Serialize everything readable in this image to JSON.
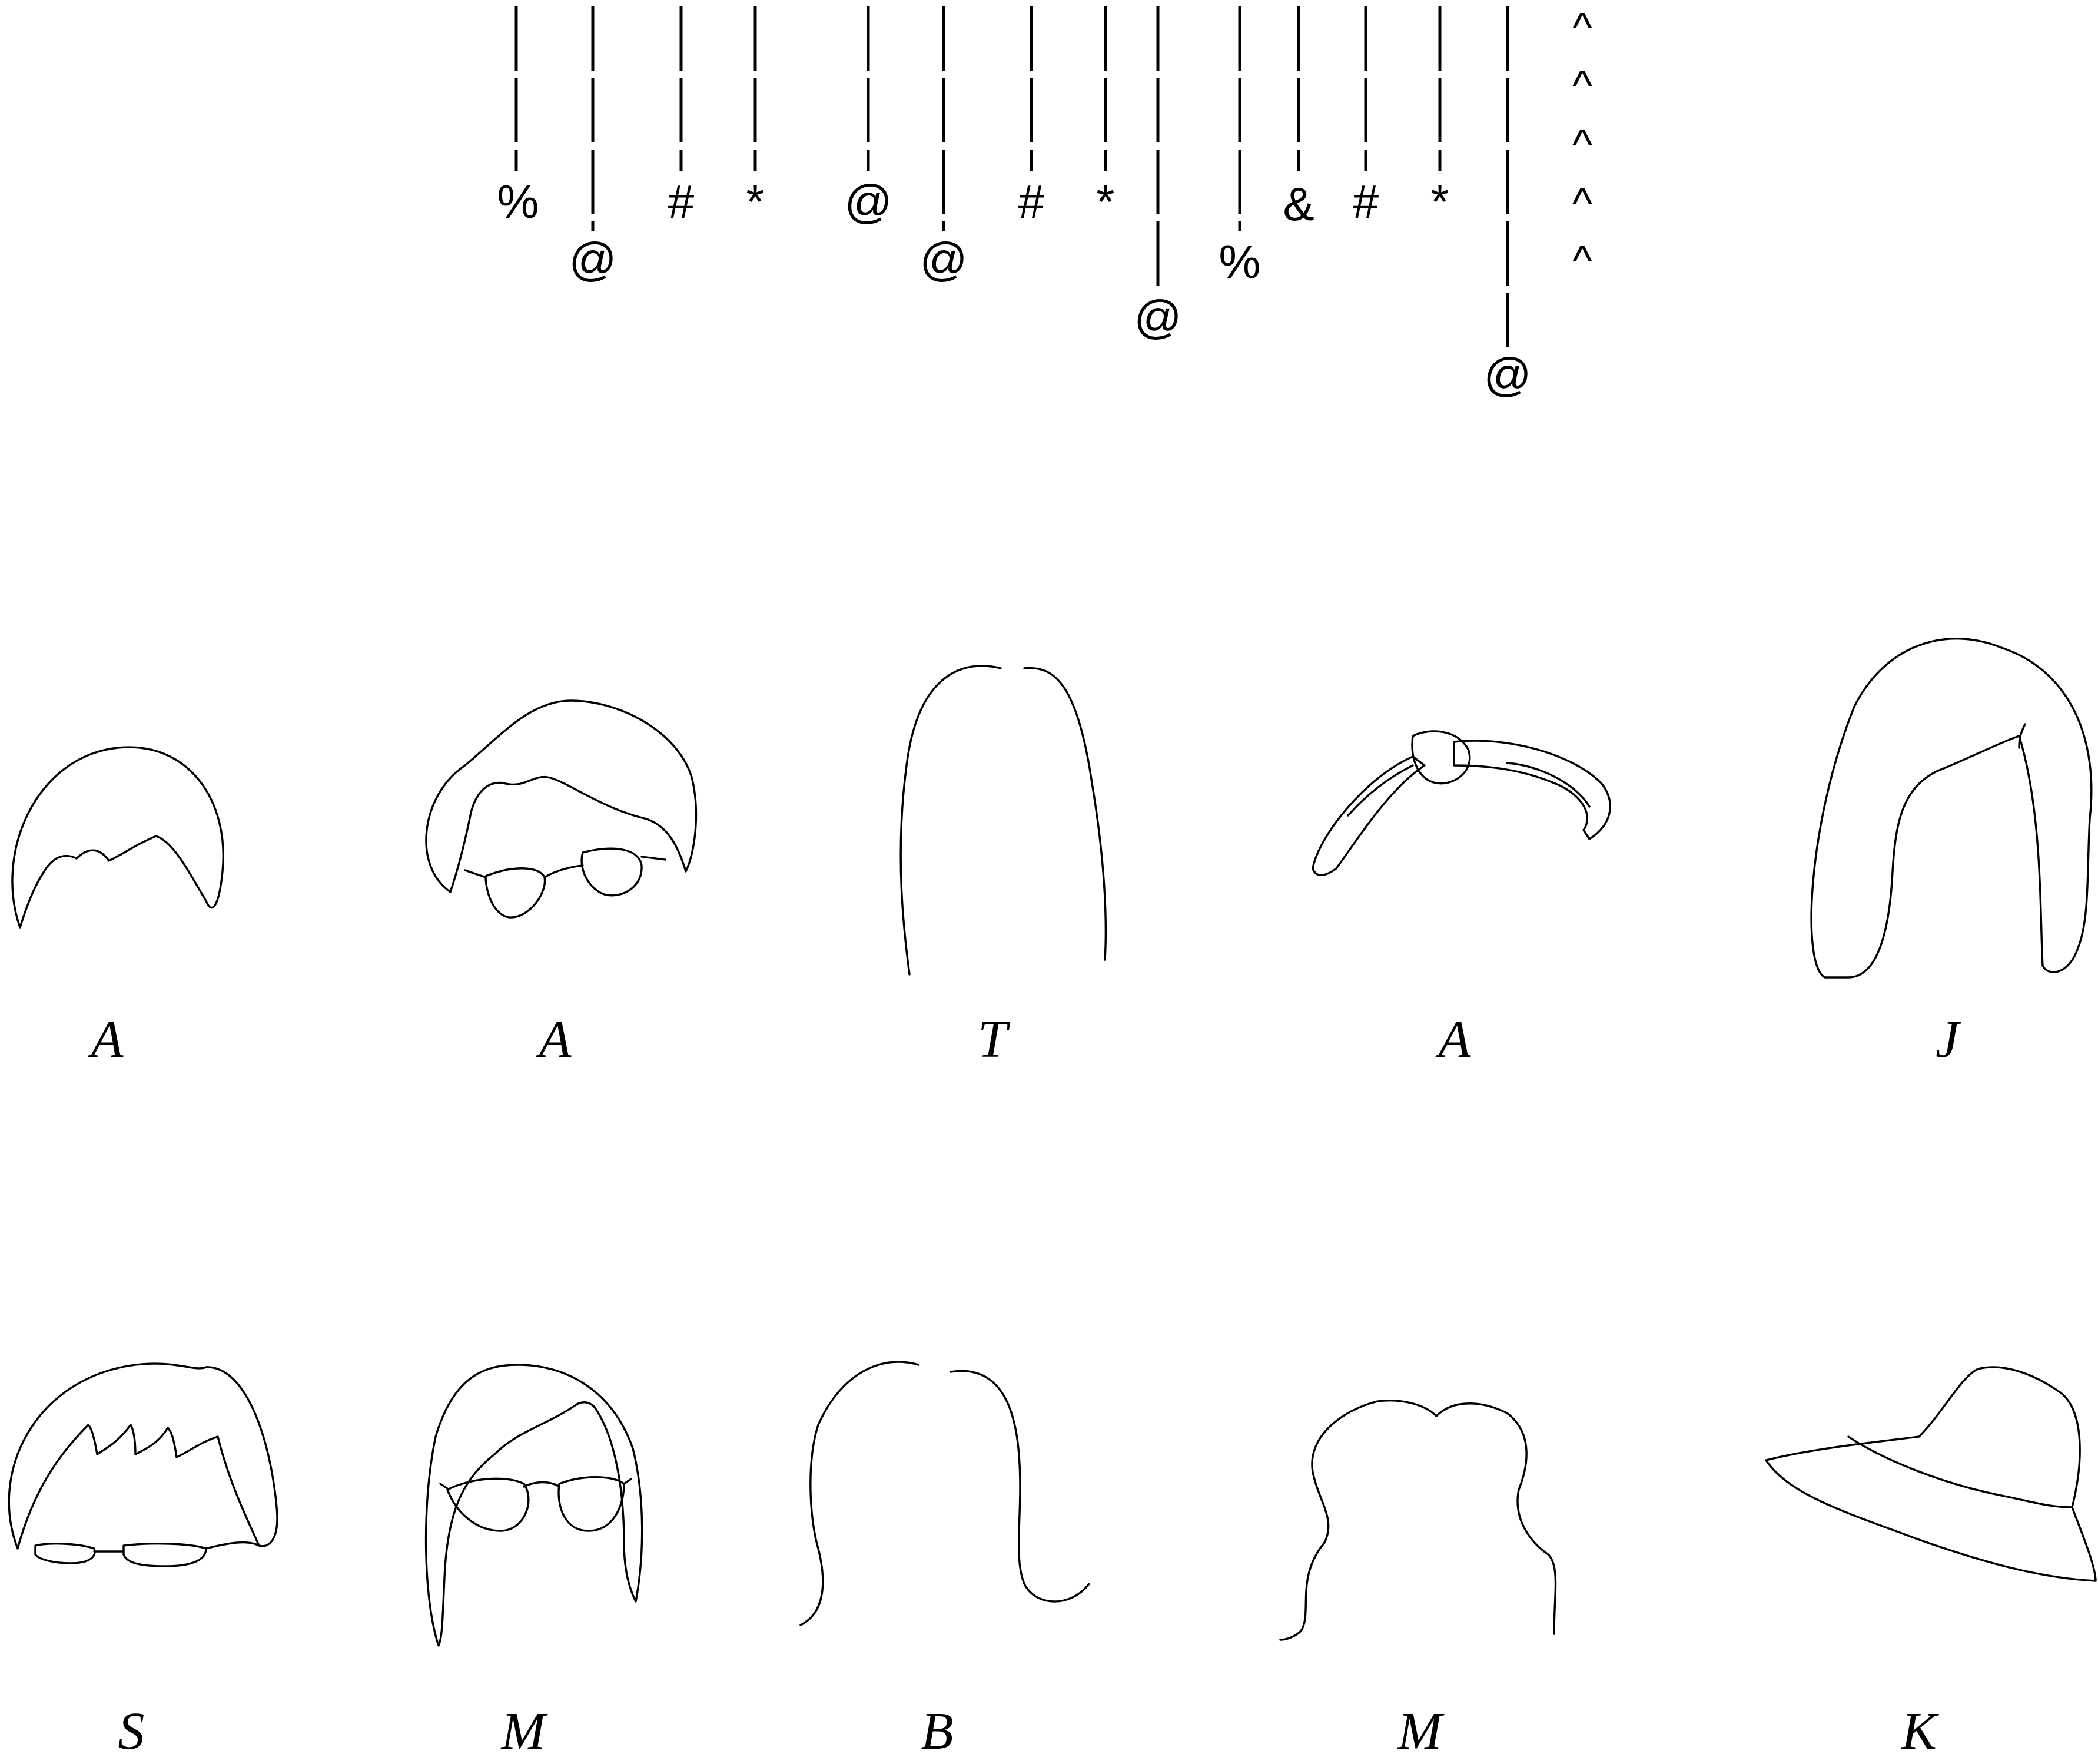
{
  "legend": {
    "columns": [
      {
        "symbol": "%"
      },
      {
        "symbol": "@"
      },
      {
        "symbol": "#"
      },
      {
        "symbol": "*"
      },
      {
        "symbol": "@"
      },
      {
        "symbol": "@"
      },
      {
        "symbol": "#"
      },
      {
        "symbol": "*"
      },
      {
        "symbol": "@"
      },
      {
        "symbol": "%"
      },
      {
        "symbol": "&"
      },
      {
        "symbol": "#"
      },
      {
        "symbol": "*"
      },
      {
        "symbol": "@"
      }
    ],
    "carets": [
      "^",
      "^",
      "^",
      "^",
      "^"
    ]
  },
  "figures": [
    {
      "name": "short-spiky-hair",
      "label": "A"
    },
    {
      "name": "bob-hair-with-sunglasses",
      "label": "A"
    },
    {
      "name": "long-straight-hair",
      "label": "T"
    },
    {
      "name": "headband",
      "label": "A"
    },
    {
      "name": "long-side-part-hair",
      "label": "J"
    },
    {
      "name": "spiky-hair-with-glasses",
      "label": "S"
    },
    {
      "name": "long-hair-with-round-glasses",
      "label": "M"
    },
    {
      "name": "shoulder-length-hair",
      "label": "B"
    },
    {
      "name": "curly-hair",
      "label": "M"
    },
    {
      "name": "bucket-hat",
      "label": "K"
    }
  ]
}
